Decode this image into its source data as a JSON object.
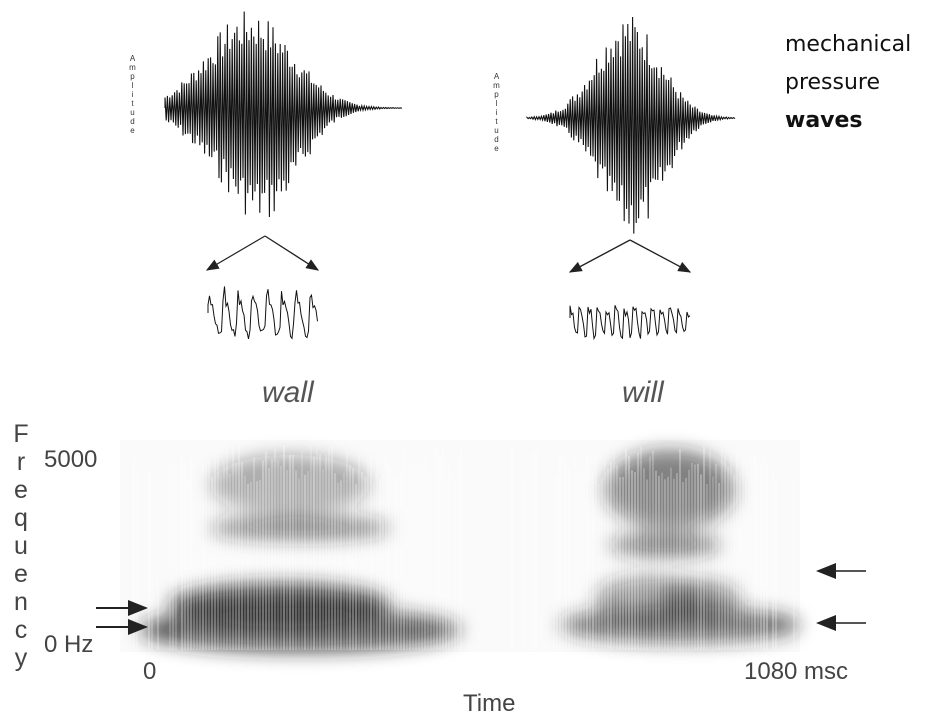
{
  "waveforms": [
    {
      "axis_label": "Amplitude",
      "word": "wall"
    },
    {
      "axis_label": "Amplitude",
      "word": "will"
    }
  ],
  "caption": {
    "line1": "mechanical",
    "line2": "pressure",
    "line3": "waves"
  },
  "spectrogram": {
    "y_label": "Frequency",
    "y_top": "5000",
    "y_bottom": "0 Hz",
    "x_start": "0",
    "x_end": "1080 msc",
    "x_label": "Time"
  }
}
